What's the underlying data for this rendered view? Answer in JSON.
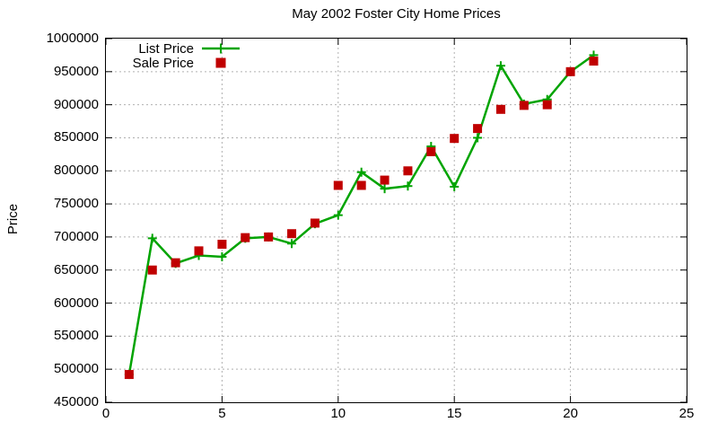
{
  "title": "May 2002 Foster City Home Prices",
  "ylabel": "Price",
  "colors": {
    "list_price": "#00a400",
    "sale_price": "#c00000",
    "grid": "#b0b0b0",
    "axis": "#000000"
  },
  "legend": [
    {
      "label": "List Price",
      "marker": "line-plus",
      "color": "#00a400"
    },
    {
      "label": "Sale Price",
      "marker": "square",
      "color": "#c00000"
    }
  ],
  "chart_data": {
    "type": "line",
    "title": "May 2002 Foster City Home Prices",
    "xlabel": "",
    "ylabel": "Price",
    "xlim": [
      0,
      25
    ],
    "ylim": [
      450000,
      1000000
    ],
    "x_ticks": [
      0,
      5,
      10,
      15,
      20,
      25
    ],
    "y_ticks": [
      450000,
      500000,
      550000,
      600000,
      650000,
      700000,
      750000,
      800000,
      850000,
      900000,
      950000,
      1000000
    ],
    "grid": true,
    "legend_position": "top-left-inside",
    "x": [
      1,
      2,
      3,
      4,
      5,
      6,
      7,
      8,
      9,
      10,
      11,
      12,
      13,
      14,
      15,
      16,
      17,
      18,
      19,
      20,
      21
    ],
    "series": [
      {
        "name": "List Price",
        "color": "#00a400",
        "marker": "plus",
        "line": true,
        "values": [
          492000,
          698000,
          660000,
          672000,
          670000,
          698000,
          700000,
          690000,
          720000,
          733000,
          798000,
          773000,
          777000,
          837000,
          776000,
          850000,
          959000,
          901000,
          908000,
          950000,
          975000
        ]
      },
      {
        "name": "Sale Price",
        "color": "#c00000",
        "marker": "square",
        "line": false,
        "values": [
          492000,
          650000,
          661000,
          679000,
          689000,
          699000,
          700000,
          705000,
          721000,
          778000,
          778000,
          786000,
          800000,
          829000,
          849000,
          864000,
          893000,
          899000,
          900000,
          950000,
          966000
        ]
      }
    ]
  }
}
